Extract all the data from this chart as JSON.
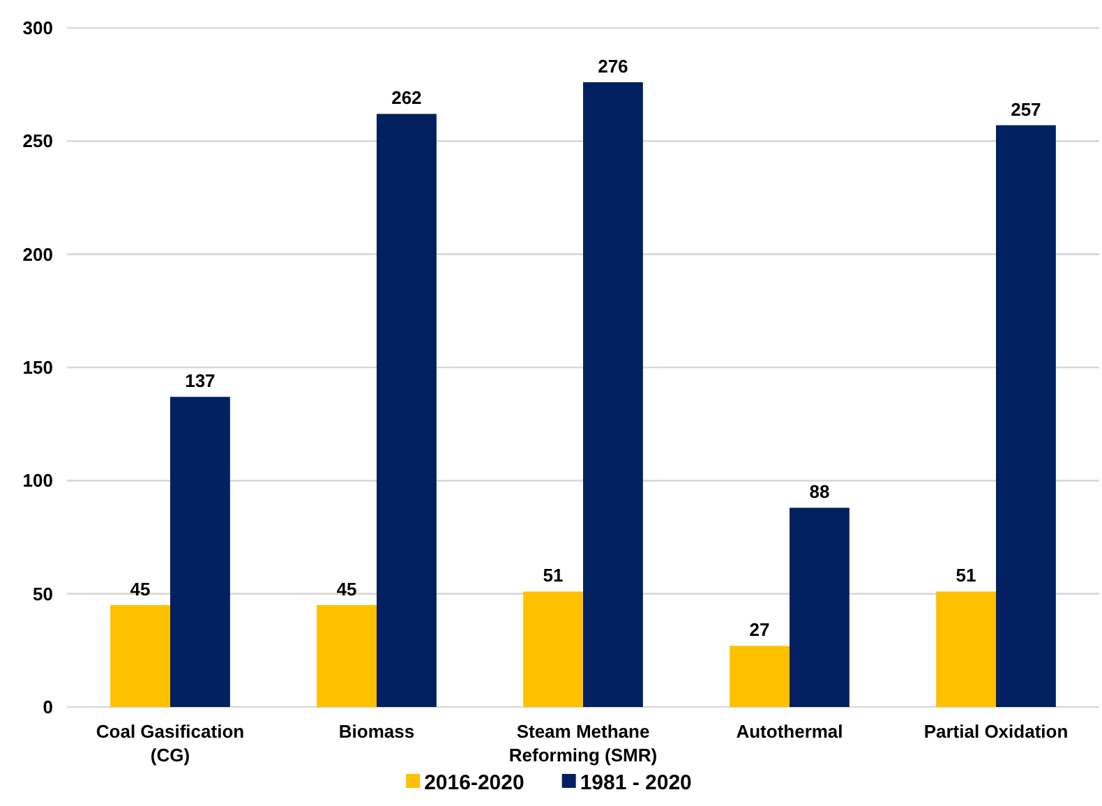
{
  "chart_data": {
    "type": "bar",
    "categories": [
      "Coal Gasification (CG)",
      "Biomass",
      "Steam Methane Reforming (SMR)",
      "Autothermal",
      "Partial Oxidation"
    ],
    "series": [
      {
        "name": "2016-2020",
        "color": "#ffc000",
        "values": [
          45,
          45,
          51,
          27,
          51
        ]
      },
      {
        "name": "1981 - 2020",
        "color": "#002060",
        "values": [
          137,
          262,
          276,
          88,
          257
        ]
      }
    ],
    "ylim": [
      0,
      300
    ],
    "yticks": [
      0,
      50,
      100,
      150,
      200,
      250,
      300
    ],
    "grid": "y",
    "legend": "bottom",
    "data_labels": true
  }
}
